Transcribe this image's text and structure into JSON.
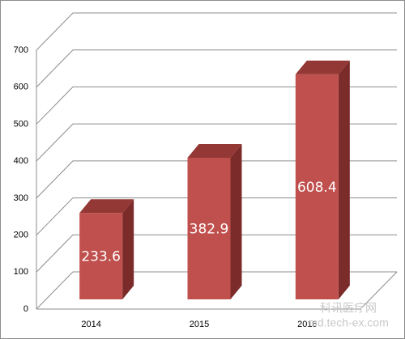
{
  "chart_data": {
    "type": "bar3d",
    "categories": [
      "2014",
      "2015",
      "2016"
    ],
    "values": [
      233.6,
      382.9,
      608.4
    ],
    "color": "#c0504d",
    "ylim": [
      0,
      700
    ],
    "yticks": [
      0,
      100,
      200,
      300,
      400,
      500,
      600,
      700
    ],
    "grid": true,
    "watermark": [
      "科讯医疗网",
      "md.tech-ex.com"
    ]
  }
}
